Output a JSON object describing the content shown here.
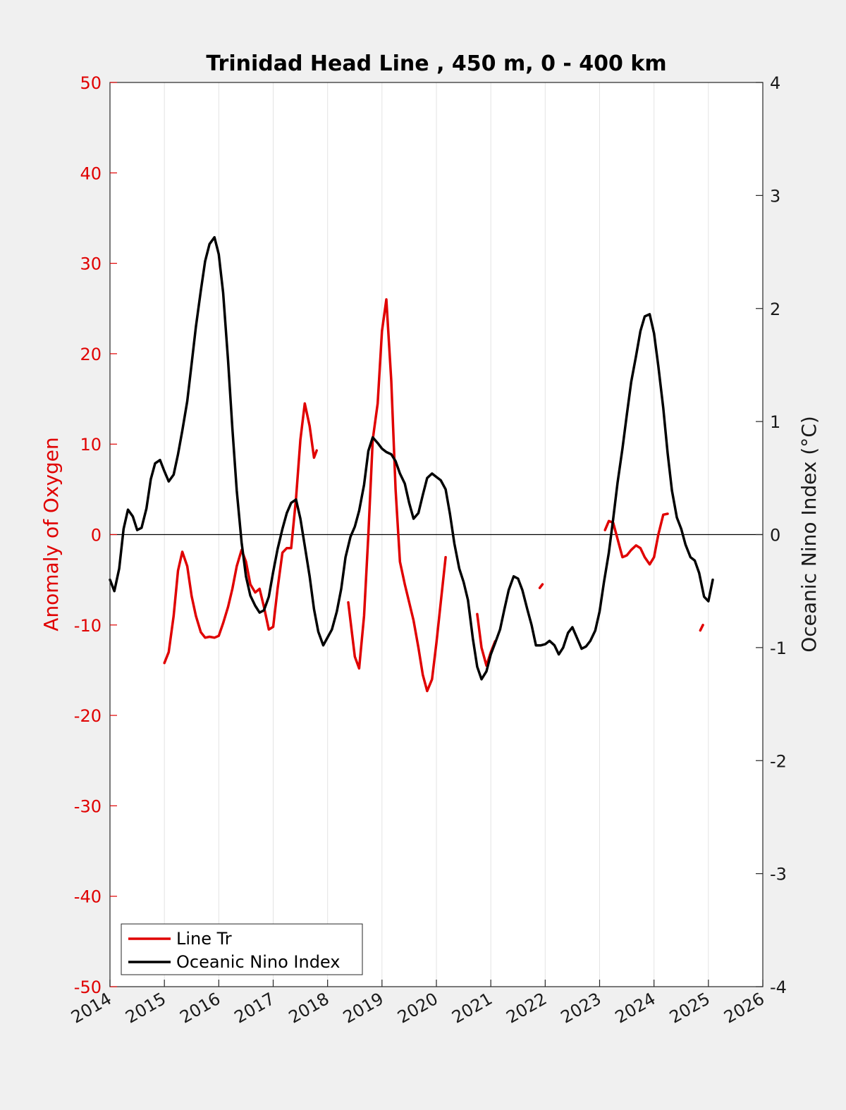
{
  "chart_data": {
    "type": "line",
    "title": "Trinidad Head Line , 450 m, 0 - 400 km",
    "ylabel": "Anomaly of Oxygen",
    "y2label": "Oceanic Nino Index (°C)",
    "xlim": [
      2014,
      2026
    ],
    "ylim": [
      -50,
      50
    ],
    "y2lim": [
      -4,
      4
    ],
    "xticks": [
      "2014",
      "2015",
      "2016",
      "2017",
      "2018",
      "2019",
      "2020",
      "2021",
      "2022",
      "2023",
      "2024",
      "2025",
      "2026"
    ],
    "yticks": [
      "-50",
      "-40",
      "-30",
      "-20",
      "-10",
      "0",
      "10",
      "20",
      "30",
      "40",
      "50"
    ],
    "y2ticks": [
      "-4",
      "-3",
      "-2",
      "-1",
      "0",
      "1",
      "2",
      "3",
      "4"
    ],
    "grid": "vertical",
    "legend_position": "bottom-left",
    "colors": {
      "oxygen": "#e00000",
      "oni": "#000000",
      "axis_left": "#e00000"
    },
    "series": [
      {
        "name": "Line Tr",
        "axis": "left",
        "color": "#e00000",
        "segments": [
          [
            [
              2015.0,
              -14.2
            ],
            [
              2015.08,
              -13.0
            ],
            [
              2015.17,
              -9.0
            ],
            [
              2015.25,
              -4.0
            ],
            [
              2015.33,
              -1.9
            ],
            [
              2015.42,
              -3.5
            ],
            [
              2015.5,
              -6.8
            ],
            [
              2015.58,
              -9.0
            ],
            [
              2015.67,
              -10.8
            ],
            [
              2015.75,
              -11.4
            ],
            [
              2015.83,
              -11.3
            ],
            [
              2015.92,
              -11.4
            ],
            [
              2016.0,
              -11.2
            ],
            [
              2016.08,
              -9.8
            ],
            [
              2016.17,
              -8.0
            ],
            [
              2016.25,
              -6.0
            ],
            [
              2016.33,
              -3.5
            ],
            [
              2016.42,
              -1.7
            ],
            [
              2016.5,
              -3.0
            ],
            [
              2016.58,
              -5.5
            ],
            [
              2016.67,
              -6.4
            ],
            [
              2016.75,
              -6.0
            ],
            [
              2016.83,
              -8.0
            ],
            [
              2016.92,
              -10.5
            ],
            [
              2017.0,
              -10.2
            ],
            [
              2017.08,
              -6.0
            ],
            [
              2017.17,
              -2.0
            ],
            [
              2017.25,
              -1.5
            ],
            [
              2017.33,
              -1.5
            ],
            [
              2017.42,
              4.0
            ],
            [
              2017.5,
              10.5
            ],
            [
              2017.58,
              14.5
            ],
            [
              2017.67,
              12.0
            ],
            [
              2017.75,
              8.5
            ],
            [
              2017.8,
              9.3
            ]
          ],
          [
            [
              2018.38,
              -7.5
            ],
            [
              2018.45,
              -11.0
            ],
            [
              2018.5,
              -13.5
            ],
            [
              2018.58,
              -14.8
            ],
            [
              2018.67,
              -9.0
            ],
            [
              2018.75,
              0.0
            ],
            [
              2018.83,
              10.5
            ],
            [
              2018.92,
              14.5
            ],
            [
              2019.0,
              22.5
            ],
            [
              2019.08,
              26.0
            ],
            [
              2019.17,
              17.0
            ],
            [
              2019.25,
              5.0
            ],
            [
              2019.33,
              -3.0
            ],
            [
              2019.42,
              -5.5
            ],
            [
              2019.5,
              -7.5
            ],
            [
              2019.58,
              -9.5
            ],
            [
              2019.67,
              -12.5
            ],
            [
              2019.75,
              -15.5
            ],
            [
              2019.83,
              -17.3
            ],
            [
              2019.92,
              -16.0
            ],
            [
              2020.0,
              -12.0
            ],
            [
              2020.08,
              -7.5
            ],
            [
              2020.17,
              -2.5
            ]
          ],
          [
            [
              2020.75,
              -8.8
            ],
            [
              2020.83,
              -12.5
            ],
            [
              2020.92,
              -14.5
            ],
            [
              2021.0,
              -13.0
            ],
            [
              2021.08,
              -11.8
            ]
          ],
          [
            [
              2021.9,
              -5.9
            ],
            [
              2021.95,
              -5.5
            ]
          ],
          [
            [
              2023.1,
              0.5
            ],
            [
              2023.17,
              1.5
            ],
            [
              2023.25,
              1.3
            ],
            [
              2023.33,
              -0.5
            ],
            [
              2023.42,
              -2.5
            ],
            [
              2023.5,
              -2.3
            ],
            [
              2023.58,
              -1.7
            ],
            [
              2023.67,
              -1.2
            ],
            [
              2023.75,
              -1.5
            ],
            [
              2023.83,
              -2.5
            ],
            [
              2023.92,
              -3.3
            ],
            [
              2024.0,
              -2.5
            ],
            [
              2024.08,
              0.0
            ],
            [
              2024.17,
              2.2
            ],
            [
              2024.25,
              2.3
            ]
          ],
          [
            [
              2024.85,
              -10.6
            ],
            [
              2024.9,
              -10.0
            ]
          ]
        ]
      },
      {
        "name": "Oceanic Nino Index",
        "axis": "right",
        "color": "#000000",
        "segments": [
          [
            [
              2014.0,
              -0.4
            ],
            [
              2014.08,
              -0.5
            ],
            [
              2014.17,
              -0.3
            ],
            [
              2014.25,
              0.05
            ],
            [
              2014.33,
              0.22
            ],
            [
              2014.42,
              0.16
            ],
            [
              2014.5,
              0.04
            ],
            [
              2014.58,
              0.06
            ],
            [
              2014.67,
              0.23
            ],
            [
              2014.75,
              0.49
            ],
            [
              2014.83,
              0.63
            ],
            [
              2014.92,
              0.66
            ],
            [
              2015.0,
              0.56
            ],
            [
              2015.08,
              0.47
            ],
            [
              2015.17,
              0.53
            ],
            [
              2015.25,
              0.71
            ],
            [
              2015.33,
              0.92
            ],
            [
              2015.42,
              1.18
            ],
            [
              2015.5,
              1.51
            ],
            [
              2015.58,
              1.84
            ],
            [
              2015.67,
              2.16
            ],
            [
              2015.75,
              2.42
            ],
            [
              2015.83,
              2.57
            ],
            [
              2015.92,
              2.63
            ],
            [
              2016.0,
              2.48
            ],
            [
              2016.08,
              2.14
            ],
            [
              2016.17,
              1.54
            ],
            [
              2016.25,
              0.94
            ],
            [
              2016.33,
              0.39
            ],
            [
              2016.42,
              -0.07
            ],
            [
              2016.5,
              -0.37
            ],
            [
              2016.58,
              -0.54
            ],
            [
              2016.67,
              -0.63
            ],
            [
              2016.75,
              -0.69
            ],
            [
              2016.83,
              -0.67
            ],
            [
              2016.92,
              -0.55
            ],
            [
              2017.0,
              -0.33
            ],
            [
              2017.08,
              -0.13
            ],
            [
              2017.17,
              0.05
            ],
            [
              2017.25,
              0.19
            ],
            [
              2017.33,
              0.28
            ],
            [
              2017.42,
              0.31
            ],
            [
              2017.5,
              0.14
            ],
            [
              2017.58,
              -0.1
            ],
            [
              2017.67,
              -0.37
            ],
            [
              2017.75,
              -0.66
            ],
            [
              2017.83,
              -0.86
            ],
            [
              2017.92,
              -0.98
            ],
            [
              2018.0,
              -0.91
            ],
            [
              2018.08,
              -0.84
            ],
            [
              2018.17,
              -0.68
            ],
            [
              2018.25,
              -0.48
            ],
            [
              2018.33,
              -0.2
            ],
            [
              2018.42,
              -0.02
            ],
            [
              2018.5,
              0.07
            ],
            [
              2018.58,
              0.21
            ],
            [
              2018.67,
              0.44
            ],
            [
              2018.75,
              0.74
            ],
            [
              2018.83,
              0.86
            ],
            [
              2018.92,
              0.81
            ],
            [
              2019.0,
              0.76
            ],
            [
              2019.08,
              0.73
            ],
            [
              2019.17,
              0.71
            ],
            [
              2019.25,
              0.65
            ],
            [
              2019.33,
              0.54
            ],
            [
              2019.42,
              0.45
            ],
            [
              2019.5,
              0.28
            ],
            [
              2019.58,
              0.14
            ],
            [
              2019.67,
              0.19
            ],
            [
              2019.75,
              0.35
            ],
            [
              2019.83,
              0.5
            ],
            [
              2019.92,
              0.54
            ],
            [
              2020.0,
              0.51
            ],
            [
              2020.08,
              0.48
            ],
            [
              2020.17,
              0.4
            ],
            [
              2020.25,
              0.18
            ],
            [
              2020.33,
              -0.08
            ],
            [
              2020.42,
              -0.3
            ],
            [
              2020.5,
              -0.42
            ],
            [
              2020.58,
              -0.58
            ],
            [
              2020.67,
              -0.92
            ],
            [
              2020.75,
              -1.17
            ],
            [
              2020.83,
              -1.28
            ],
            [
              2020.92,
              -1.21
            ],
            [
              2021.0,
              -1.06
            ],
            [
              2021.08,
              -0.96
            ],
            [
              2021.17,
              -0.84
            ],
            [
              2021.25,
              -0.66
            ],
            [
              2021.33,
              -0.49
            ],
            [
              2021.42,
              -0.37
            ],
            [
              2021.5,
              -0.39
            ],
            [
              2021.58,
              -0.49
            ],
            [
              2021.67,
              -0.66
            ],
            [
              2021.75,
              -0.8
            ],
            [
              2021.83,
              -0.98
            ],
            [
              2021.92,
              -0.98
            ],
            [
              2022.0,
              -0.97
            ],
            [
              2022.08,
              -0.94
            ],
            [
              2022.17,
              -0.98
            ],
            [
              2022.25,
              -1.06
            ],
            [
              2022.33,
              -1.0
            ],
            [
              2022.42,
              -0.87
            ],
            [
              2022.5,
              -0.82
            ],
            [
              2022.58,
              -0.91
            ],
            [
              2022.67,
              -1.01
            ],
            [
              2022.75,
              -0.99
            ],
            [
              2022.83,
              -0.94
            ],
            [
              2022.92,
              -0.85
            ],
            [
              2023.0,
              -0.68
            ],
            [
              2023.08,
              -0.42
            ],
            [
              2023.17,
              -0.16
            ],
            [
              2023.25,
              0.14
            ],
            [
              2023.33,
              0.46
            ],
            [
              2023.42,
              0.76
            ],
            [
              2023.5,
              1.06
            ],
            [
              2023.58,
              1.35
            ],
            [
              2023.67,
              1.58
            ],
            [
              2023.75,
              1.8
            ],
            [
              2023.83,
              1.93
            ],
            [
              2023.92,
              1.95
            ],
            [
              2024.0,
              1.78
            ],
            [
              2024.08,
              1.49
            ],
            [
              2024.17,
              1.12
            ],
            [
              2024.25,
              0.72
            ],
            [
              2024.33,
              0.39
            ],
            [
              2024.42,
              0.15
            ],
            [
              2024.5,
              0.05
            ],
            [
              2024.58,
              -0.09
            ],
            [
              2024.67,
              -0.2
            ],
            [
              2024.75,
              -0.23
            ],
            [
              2024.83,
              -0.34
            ],
            [
              2024.92,
              -0.55
            ],
            [
              2025.0,
              -0.59
            ],
            [
              2025.08,
              -0.4
            ]
          ]
        ]
      }
    ]
  }
}
